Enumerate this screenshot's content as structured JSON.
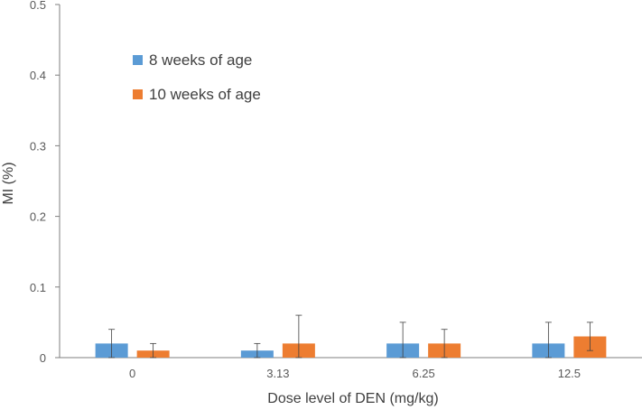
{
  "chart_data": {
    "type": "bar",
    "xlabel": "Dose level of DEN (mg/kg)",
    "ylabel": "MI (%)",
    "ylim": [
      0,
      0.5
    ],
    "yticks": [
      "0",
      "0.1",
      "0.2",
      "0.3",
      "0.4",
      "0.5"
    ],
    "ytick_values": [
      0,
      0.1,
      0.2,
      0.3,
      0.4,
      0.5
    ],
    "categories": [
      "0",
      "3.13",
      "6.25",
      "12.5"
    ],
    "series": [
      {
        "name": "8 weeks of age",
        "color": "#5B9BD5",
        "values": [
          0.02,
          0.01,
          0.02,
          0.02
        ],
        "error": [
          0.02,
          0.01,
          0.03,
          0.03
        ]
      },
      {
        "name": "10 weeks of age",
        "color": "#ED7D31",
        "values": [
          0.01,
          0.02,
          0.02,
          0.03
        ],
        "error": [
          0.01,
          0.04,
          0.02,
          0.02
        ]
      }
    ],
    "grid": false,
    "legend_position": "top-left"
  }
}
